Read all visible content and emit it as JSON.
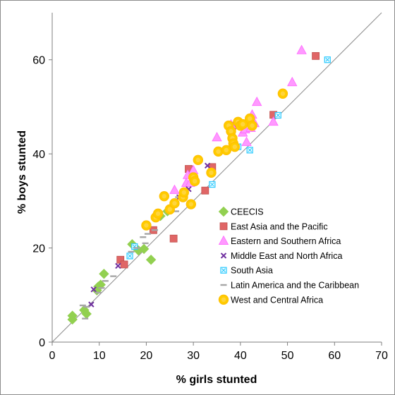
{
  "chart_data": {
    "type": "scatter",
    "title": "",
    "xlabel": "% girls stunted",
    "ylabel": "% boys stunted",
    "xlim": [
      0,
      70
    ],
    "ylim": [
      0,
      70
    ],
    "xticks": [
      0,
      10,
      20,
      30,
      40,
      50,
      60,
      70
    ],
    "yticks": [
      0,
      20,
      40,
      60
    ],
    "grid": false,
    "reference_line": "y = x",
    "legend_position": "lower-right",
    "series": [
      {
        "name": "CEECIS",
        "color": "#92d050",
        "marker": "diamond",
        "points": [
          [
            4.3,
            4.8
          ],
          [
            4.3,
            5.6
          ],
          [
            6.8,
            6.8
          ],
          [
            7.3,
            6.0
          ],
          [
            9.5,
            11.0
          ],
          [
            9.8,
            11.8
          ],
          [
            10.3,
            12.2
          ],
          [
            11.0,
            14.5
          ],
          [
            17.0,
            20.8
          ],
          [
            18.3,
            19.5
          ],
          [
            19.5,
            19.8
          ],
          [
            21.0,
            17.5
          ],
          [
            23.0,
            26.8
          ],
          [
            24.5,
            27.8
          ]
        ]
      },
      {
        "name": "East Asia and the Pacific",
        "color": "#e06666",
        "marker": "square",
        "points": [
          [
            14.5,
            17.5
          ],
          [
            15.3,
            16.5
          ],
          [
            21.5,
            23.8
          ],
          [
            25.8,
            22.0
          ],
          [
            29.0,
            36.8
          ],
          [
            32.5,
            32.2
          ],
          [
            34.0,
            37.2
          ],
          [
            38.3,
            46.0
          ],
          [
            47.0,
            48.3
          ],
          [
            56.0,
            60.8
          ]
        ]
      },
      {
        "name": "Eastern and Southern Africa",
        "color": "#ff99ff",
        "marker": "triangle",
        "points": [
          [
            26.0,
            32.3
          ],
          [
            28.5,
            33.8
          ],
          [
            28.8,
            35.5
          ],
          [
            29.3,
            33.8
          ],
          [
            30.0,
            36.5
          ],
          [
            35.0,
            43.5
          ],
          [
            38.0,
            46.2
          ],
          [
            40.5,
            44.5
          ],
          [
            41.0,
            45.2
          ],
          [
            41.3,
            42.5
          ],
          [
            42.0,
            47.2
          ],
          [
            42.2,
            45.5
          ],
          [
            42.5,
            48.3
          ],
          [
            43.0,
            46.5
          ],
          [
            43.5,
            51.0
          ],
          [
            47.0,
            46.8
          ],
          [
            51.0,
            55.2
          ],
          [
            53.0,
            62.0
          ]
        ]
      },
      {
        "name": "Middle East and North Africa",
        "color": "#7030a0",
        "marker": "x",
        "points": [
          [
            8.3,
            8.0
          ],
          [
            8.8,
            11.2
          ],
          [
            14.0,
            16.2
          ],
          [
            27.0,
            30.8
          ],
          [
            29.0,
            32.5
          ],
          [
            33.0,
            37.5
          ]
        ]
      },
      {
        "name": "South Asia",
        "color": "#33ccff",
        "marker": "boxx",
        "points": [
          [
            16.5,
            18.3
          ],
          [
            17.5,
            20.3
          ],
          [
            34.0,
            33.5
          ],
          [
            39.5,
            41.5
          ],
          [
            42.0,
            40.8
          ],
          [
            48.0,
            48.2
          ],
          [
            58.5,
            60.0
          ]
        ]
      },
      {
        "name": "Latin America and the Caribbean",
        "color": "#a6a6a6",
        "marker": "dash",
        "points": [
          [
            6.5,
            7.8
          ],
          [
            7.0,
            5.0
          ],
          [
            7.3,
            7.5
          ],
          [
            9.8,
            10.5
          ],
          [
            10.5,
            11.5
          ],
          [
            11.3,
            13.0
          ],
          [
            13.0,
            14.0
          ],
          [
            16.8,
            19.2
          ],
          [
            18.0,
            20.0
          ],
          [
            19.3,
            22.3
          ],
          [
            19.8,
            21.0
          ],
          [
            20.3,
            23.0
          ],
          [
            21.8,
            23.8
          ],
          [
            26.3,
            27.8
          ],
          [
            26.8,
            30.8
          ],
          [
            28.0,
            32.0
          ]
        ]
      },
      {
        "name": "West and Central Africa",
        "color": "#ffcc00",
        "marker": "circle",
        "points": [
          [
            20.0,
            24.8
          ],
          [
            22.0,
            26.5
          ],
          [
            22.5,
            27.3
          ],
          [
            23.8,
            31.0
          ],
          [
            25.0,
            28.2
          ],
          [
            26.0,
            29.5
          ],
          [
            27.8,
            30.8
          ],
          [
            28.0,
            31.8
          ],
          [
            29.5,
            29.3
          ],
          [
            30.0,
            35.0
          ],
          [
            30.3,
            34.2
          ],
          [
            31.0,
            38.7
          ],
          [
            33.8,
            36.0
          ],
          [
            35.3,
            40.5
          ],
          [
            37.0,
            40.8
          ],
          [
            37.5,
            46.0
          ],
          [
            38.0,
            44.8
          ],
          [
            38.3,
            43.3
          ],
          [
            38.5,
            42.2
          ],
          [
            38.8,
            41.5
          ],
          [
            39.5,
            46.8
          ],
          [
            40.0,
            46.0
          ],
          [
            40.5,
            46.3
          ],
          [
            42.0,
            47.5
          ],
          [
            42.5,
            46.0
          ],
          [
            49.0,
            52.8
          ]
        ]
      }
    ]
  }
}
